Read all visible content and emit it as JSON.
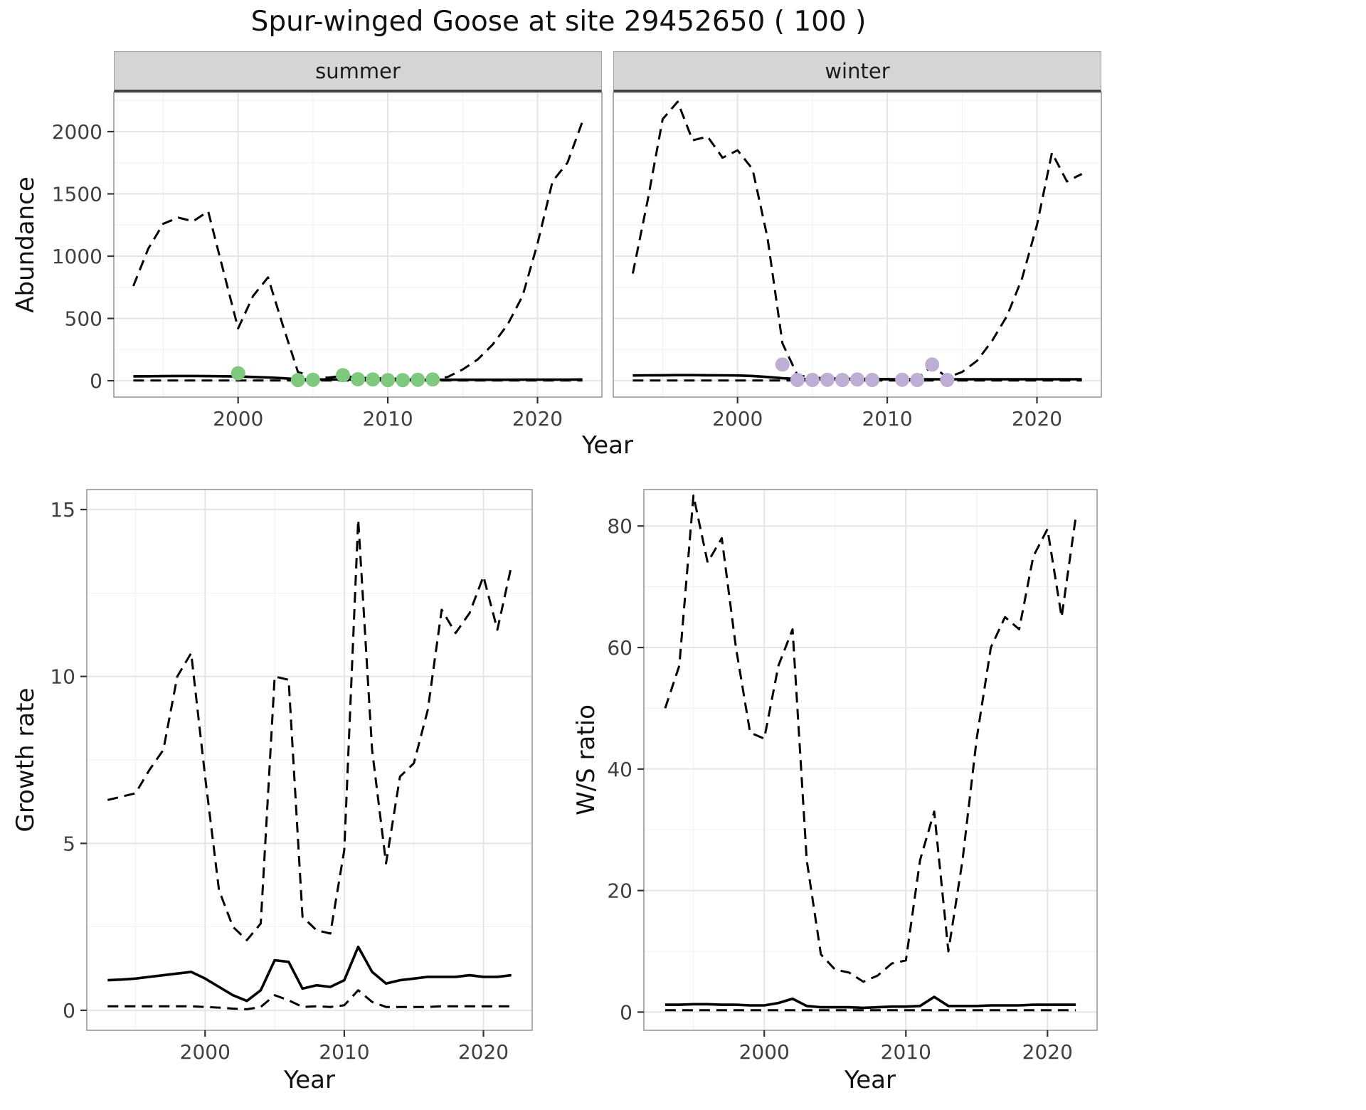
{
  "title": "Spur-winged Goose at site 29452650 ( 100 )",
  "colors": {
    "summer_points": "#7FC97F",
    "winter_points": "#BEAED4",
    "line": "#000000",
    "strip_bg": "#D5D5D5",
    "grid_major": "#E5E5E5",
    "grid_minor": "#F2F2F2",
    "panel_border": "#999999",
    "axis_text": "#404040",
    "tick_mark": "#333333"
  },
  "chart_data": [
    {
      "id": "abundance_summer",
      "type": "line",
      "facet_label": "summer",
      "xlabel": "Year",
      "ylabel": "Abundance",
      "x": [
        1993,
        1994,
        1995,
        1996,
        1997,
        1998,
        1999,
        2000,
        2001,
        2002,
        2003,
        2004,
        2005,
        2006,
        2007,
        2008,
        2009,
        2010,
        2011,
        2012,
        2013,
        2014,
        2015,
        2016,
        2017,
        2018,
        2019,
        2020,
        2021,
        2022,
        2023
      ],
      "xlim": [
        1991.7,
        2024.3
      ],
      "ylim": [
        -131,
        2314
      ],
      "xticks": [
        2000,
        2010,
        2020
      ],
      "yticks": [
        0,
        500,
        1000,
        1500,
        2000
      ],
      "xminor": [
        1995,
        2005,
        2015
      ],
      "yminor": [
        250,
        750,
        1250,
        1750,
        2250
      ],
      "series": [
        {
          "name": "upper_ci",
          "style": "dashed",
          "color": "#000000",
          "y": [
            760,
            1060,
            1260,
            1310,
            1280,
            1360,
            890,
            420,
            680,
            830,
            440,
            70,
            30,
            25,
            40,
            25,
            20,
            18,
            15,
            15,
            15,
            30,
            90,
            170,
            290,
            450,
            680,
            1100,
            1600,
            1750,
            2080
          ]
        },
        {
          "name": "median",
          "style": "solid",
          "color": "#000000",
          "y": [
            35,
            36,
            37,
            38,
            38,
            37,
            36,
            34,
            30,
            26,
            20,
            12,
            10,
            10,
            11,
            10,
            9,
            8,
            8,
            8,
            8,
            8,
            8,
            8,
            8,
            8,
            9,
            9,
            9,
            9,
            10
          ]
        },
        {
          "name": "lower_ci",
          "style": "dashed",
          "color": "#000000",
          "y": [
            2,
            2,
            2,
            2,
            2,
            2,
            2,
            2,
            2,
            2,
            2,
            2,
            2,
            2,
            2,
            2,
            2,
            2,
            2,
            2,
            2,
            2,
            2,
            2,
            2,
            2,
            2,
            2,
            2,
            2,
            2
          ]
        },
        {
          "name": "observed_counts",
          "style": "points",
          "color": "#7FC97F",
          "x": [
            2000,
            2004,
            2005,
            2007,
            2008,
            2009,
            2010,
            2011,
            2012,
            2013
          ],
          "y": [
            60,
            5,
            8,
            45,
            12,
            10,
            5,
            5,
            8,
            10
          ]
        }
      ]
    },
    {
      "id": "abundance_winter",
      "type": "line",
      "facet_label": "winter",
      "xlabel": "Year",
      "ylabel": "Abundance",
      "x": [
        1993,
        1994,
        1995,
        1996,
        1997,
        1998,
        1999,
        2000,
        2001,
        2002,
        2003,
        2004,
        2005,
        2006,
        2007,
        2008,
        2009,
        2010,
        2011,
        2012,
        2013,
        2014,
        2015,
        2016,
        2017,
        2018,
        2019,
        2020,
        2021,
        2022,
        2023
      ],
      "xlim": [
        1991.7,
        2024.3
      ],
      "ylim": [
        -131,
        2314
      ],
      "xticks": [
        2000,
        2010,
        2020
      ],
      "yticks": [
        0,
        500,
        1000,
        1500,
        2000
      ],
      "xminor": [
        1995,
        2005,
        2015
      ],
      "yminor": [
        250,
        750,
        1250,
        1750,
        2250
      ],
      "series": [
        {
          "name": "upper_ci",
          "style": "dashed",
          "color": "#000000",
          "y": [
            860,
            1450,
            2100,
            2240,
            1930,
            1960,
            1790,
            1850,
            1700,
            1150,
            300,
            45,
            25,
            20,
            18,
            15,
            15,
            14,
            14,
            15,
            120,
            25,
            70,
            160,
            320,
            520,
            820,
            1250,
            1830,
            1600,
            1660
          ]
        },
        {
          "name": "median",
          "style": "solid",
          "color": "#000000",
          "y": [
            42,
            43,
            44,
            45,
            45,
            44,
            43,
            42,
            38,
            30,
            20,
            14,
            12,
            12,
            12,
            12,
            12,
            12,
            12,
            12,
            12,
            12,
            12,
            12,
            12,
            12,
            12,
            12,
            12,
            12,
            12
          ]
        },
        {
          "name": "lower_ci",
          "style": "dashed",
          "color": "#000000",
          "y": [
            2,
            2,
            2,
            2,
            2,
            2,
            2,
            2,
            2,
            2,
            2,
            2,
            2,
            2,
            2,
            2,
            2,
            2,
            2,
            2,
            2,
            2,
            2,
            2,
            2,
            2,
            2,
            2,
            2,
            2,
            2
          ]
        },
        {
          "name": "observed_counts",
          "style": "points",
          "color": "#BEAED4",
          "x": [
            2003,
            2004,
            2005,
            2006,
            2007,
            2008,
            2009,
            2011,
            2012,
            2013,
            2014
          ],
          "y": [
            130,
            6,
            6,
            8,
            6,
            10,
            6,
            8,
            6,
            130,
            6
          ]
        }
      ]
    },
    {
      "id": "growth_rate",
      "type": "line",
      "facet_label": null,
      "xlabel": "Year",
      "ylabel": "Growth rate",
      "x": [
        1993,
        1994,
        1995,
        1996,
        1997,
        1998,
        1999,
        2000,
        2001,
        2002,
        2003,
        2004,
        2005,
        2006,
        2007,
        2008,
        2009,
        2010,
        2011,
        2012,
        2013,
        2014,
        2015,
        2016,
        2017,
        2018,
        2019,
        2020,
        2021,
        2022
      ],
      "xlim": [
        1991.5,
        2023.5
      ],
      "ylim": [
        -0.6,
        15.6
      ],
      "xticks": [
        2000,
        2010,
        2020
      ],
      "yticks": [
        0,
        5,
        10,
        15
      ],
      "xminor": [
        1995,
        2005,
        2015
      ],
      "yminor": [
        2.5,
        7.5,
        12.5
      ],
      "series": [
        {
          "name": "upper_ci",
          "style": "dashed",
          "color": "#000000",
          "y": [
            6.3,
            6.4,
            6.5,
            7.2,
            7.8,
            10.0,
            10.7,
            7.0,
            3.6,
            2.5,
            2.1,
            2.6,
            10.0,
            9.9,
            2.8,
            2.4,
            2.3,
            4.8,
            14.7,
            7.8,
            4.4,
            7.0,
            7.4,
            9.0,
            12.0,
            11.3,
            11.9,
            13.0,
            11.4,
            13.3
          ]
        },
        {
          "name": "median",
          "style": "solid",
          "color": "#000000",
          "y": [
            0.9,
            0.92,
            0.95,
            1.0,
            1.05,
            1.1,
            1.15,
            0.95,
            0.7,
            0.45,
            0.28,
            0.6,
            1.5,
            1.45,
            0.65,
            0.75,
            0.7,
            0.9,
            1.9,
            1.15,
            0.8,
            0.9,
            0.95,
            1.0,
            1.0,
            1.0,
            1.05,
            1.0,
            1.0,
            1.05
          ]
        },
        {
          "name": "lower_ci",
          "style": "dashed",
          "color": "#000000",
          "y": [
            0.12,
            0.12,
            0.12,
            0.12,
            0.12,
            0.12,
            0.12,
            0.1,
            0.08,
            0.05,
            0.03,
            0.1,
            0.45,
            0.3,
            0.1,
            0.12,
            0.1,
            0.15,
            0.6,
            0.25,
            0.1,
            0.1,
            0.1,
            0.1,
            0.12,
            0.12,
            0.12,
            0.12,
            0.12,
            0.12
          ]
        }
      ]
    },
    {
      "id": "ws_ratio",
      "type": "line",
      "facet_label": null,
      "xlabel": "Year",
      "ylabel": "W/S ratio",
      "x": [
        1993,
        1994,
        1995,
        1996,
        1997,
        1998,
        1999,
        2000,
        2001,
        2002,
        2003,
        2004,
        2005,
        2006,
        2007,
        2008,
        2009,
        2010,
        2011,
        2012,
        2013,
        2014,
        2015,
        2016,
        2017,
        2018,
        2019,
        2020,
        2021,
        2022
      ],
      "xlim": [
        1991.5,
        2023.5
      ],
      "ylim": [
        -3,
        86
      ],
      "xticks": [
        2000,
        2010,
        2020
      ],
      "yticks": [
        0,
        20,
        40,
        60,
        80
      ],
      "xminor": [
        1995,
        2005,
        2015
      ],
      "yminor": [
        10,
        30,
        50,
        70
      ],
      "series": [
        {
          "name": "upper_ci",
          "style": "dashed",
          "color": "#000000",
          "y": [
            50,
            57,
            85,
            74,
            78,
            60,
            46,
            45,
            57,
            63,
            25,
            9.5,
            7,
            6.5,
            5,
            6,
            8,
            8.5,
            25,
            33,
            10,
            25,
            45,
            60,
            65,
            63,
            75,
            79.5,
            65,
            81.5
          ]
        },
        {
          "name": "median",
          "style": "solid",
          "color": "#000000",
          "y": [
            1.2,
            1.2,
            1.3,
            1.3,
            1.2,
            1.2,
            1.1,
            1.1,
            1.5,
            2.2,
            1.0,
            0.8,
            0.8,
            0.8,
            0.7,
            0.8,
            0.9,
            0.9,
            1.0,
            2.5,
            1.0,
            1.0,
            1.0,
            1.1,
            1.1,
            1.1,
            1.2,
            1.2,
            1.2,
            1.2
          ]
        },
        {
          "name": "lower_ci",
          "style": "dashed",
          "color": "#000000",
          "y": [
            0.3,
            0.3,
            0.3,
            0.3,
            0.3,
            0.3,
            0.3,
            0.3,
            0.3,
            0.3,
            0.3,
            0.3,
            0.3,
            0.3,
            0.3,
            0.3,
            0.3,
            0.3,
            0.3,
            0.3,
            0.3,
            0.3,
            0.3,
            0.3,
            0.3,
            0.3,
            0.3,
            0.3,
            0.3,
            0.3
          ]
        }
      ]
    }
  ]
}
